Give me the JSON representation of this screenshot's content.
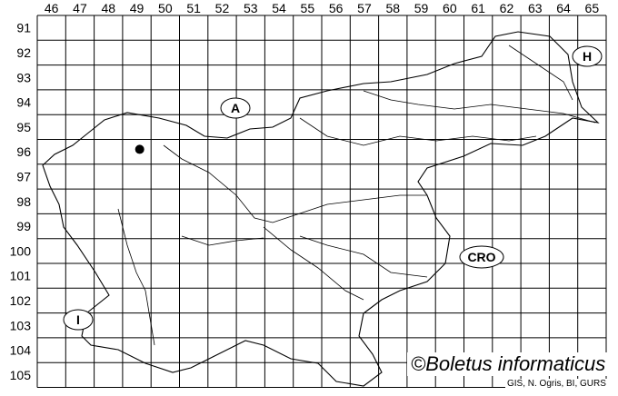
{
  "map": {
    "columns": [
      "46",
      "47",
      "48",
      "49",
      "50",
      "51",
      "52",
      "53",
      "54",
      "55",
      "56",
      "57",
      "58",
      "59",
      "60",
      "61",
      "62",
      "63",
      "64",
      "65"
    ],
    "rows": [
      "91",
      "92",
      "93",
      "94",
      "95",
      "96",
      "97",
      "98",
      "99",
      "100",
      "101",
      "102",
      "103",
      "104",
      "105"
    ],
    "country_labels": {
      "austria": "A",
      "hungary": "H",
      "croatia": "CRO",
      "italy": "I"
    },
    "records": [
      {
        "column": "49",
        "row": "96"
      }
    ],
    "credit": "©Boletus informaticus",
    "source": "GIS, N. Ogris, BI, GURS"
  }
}
